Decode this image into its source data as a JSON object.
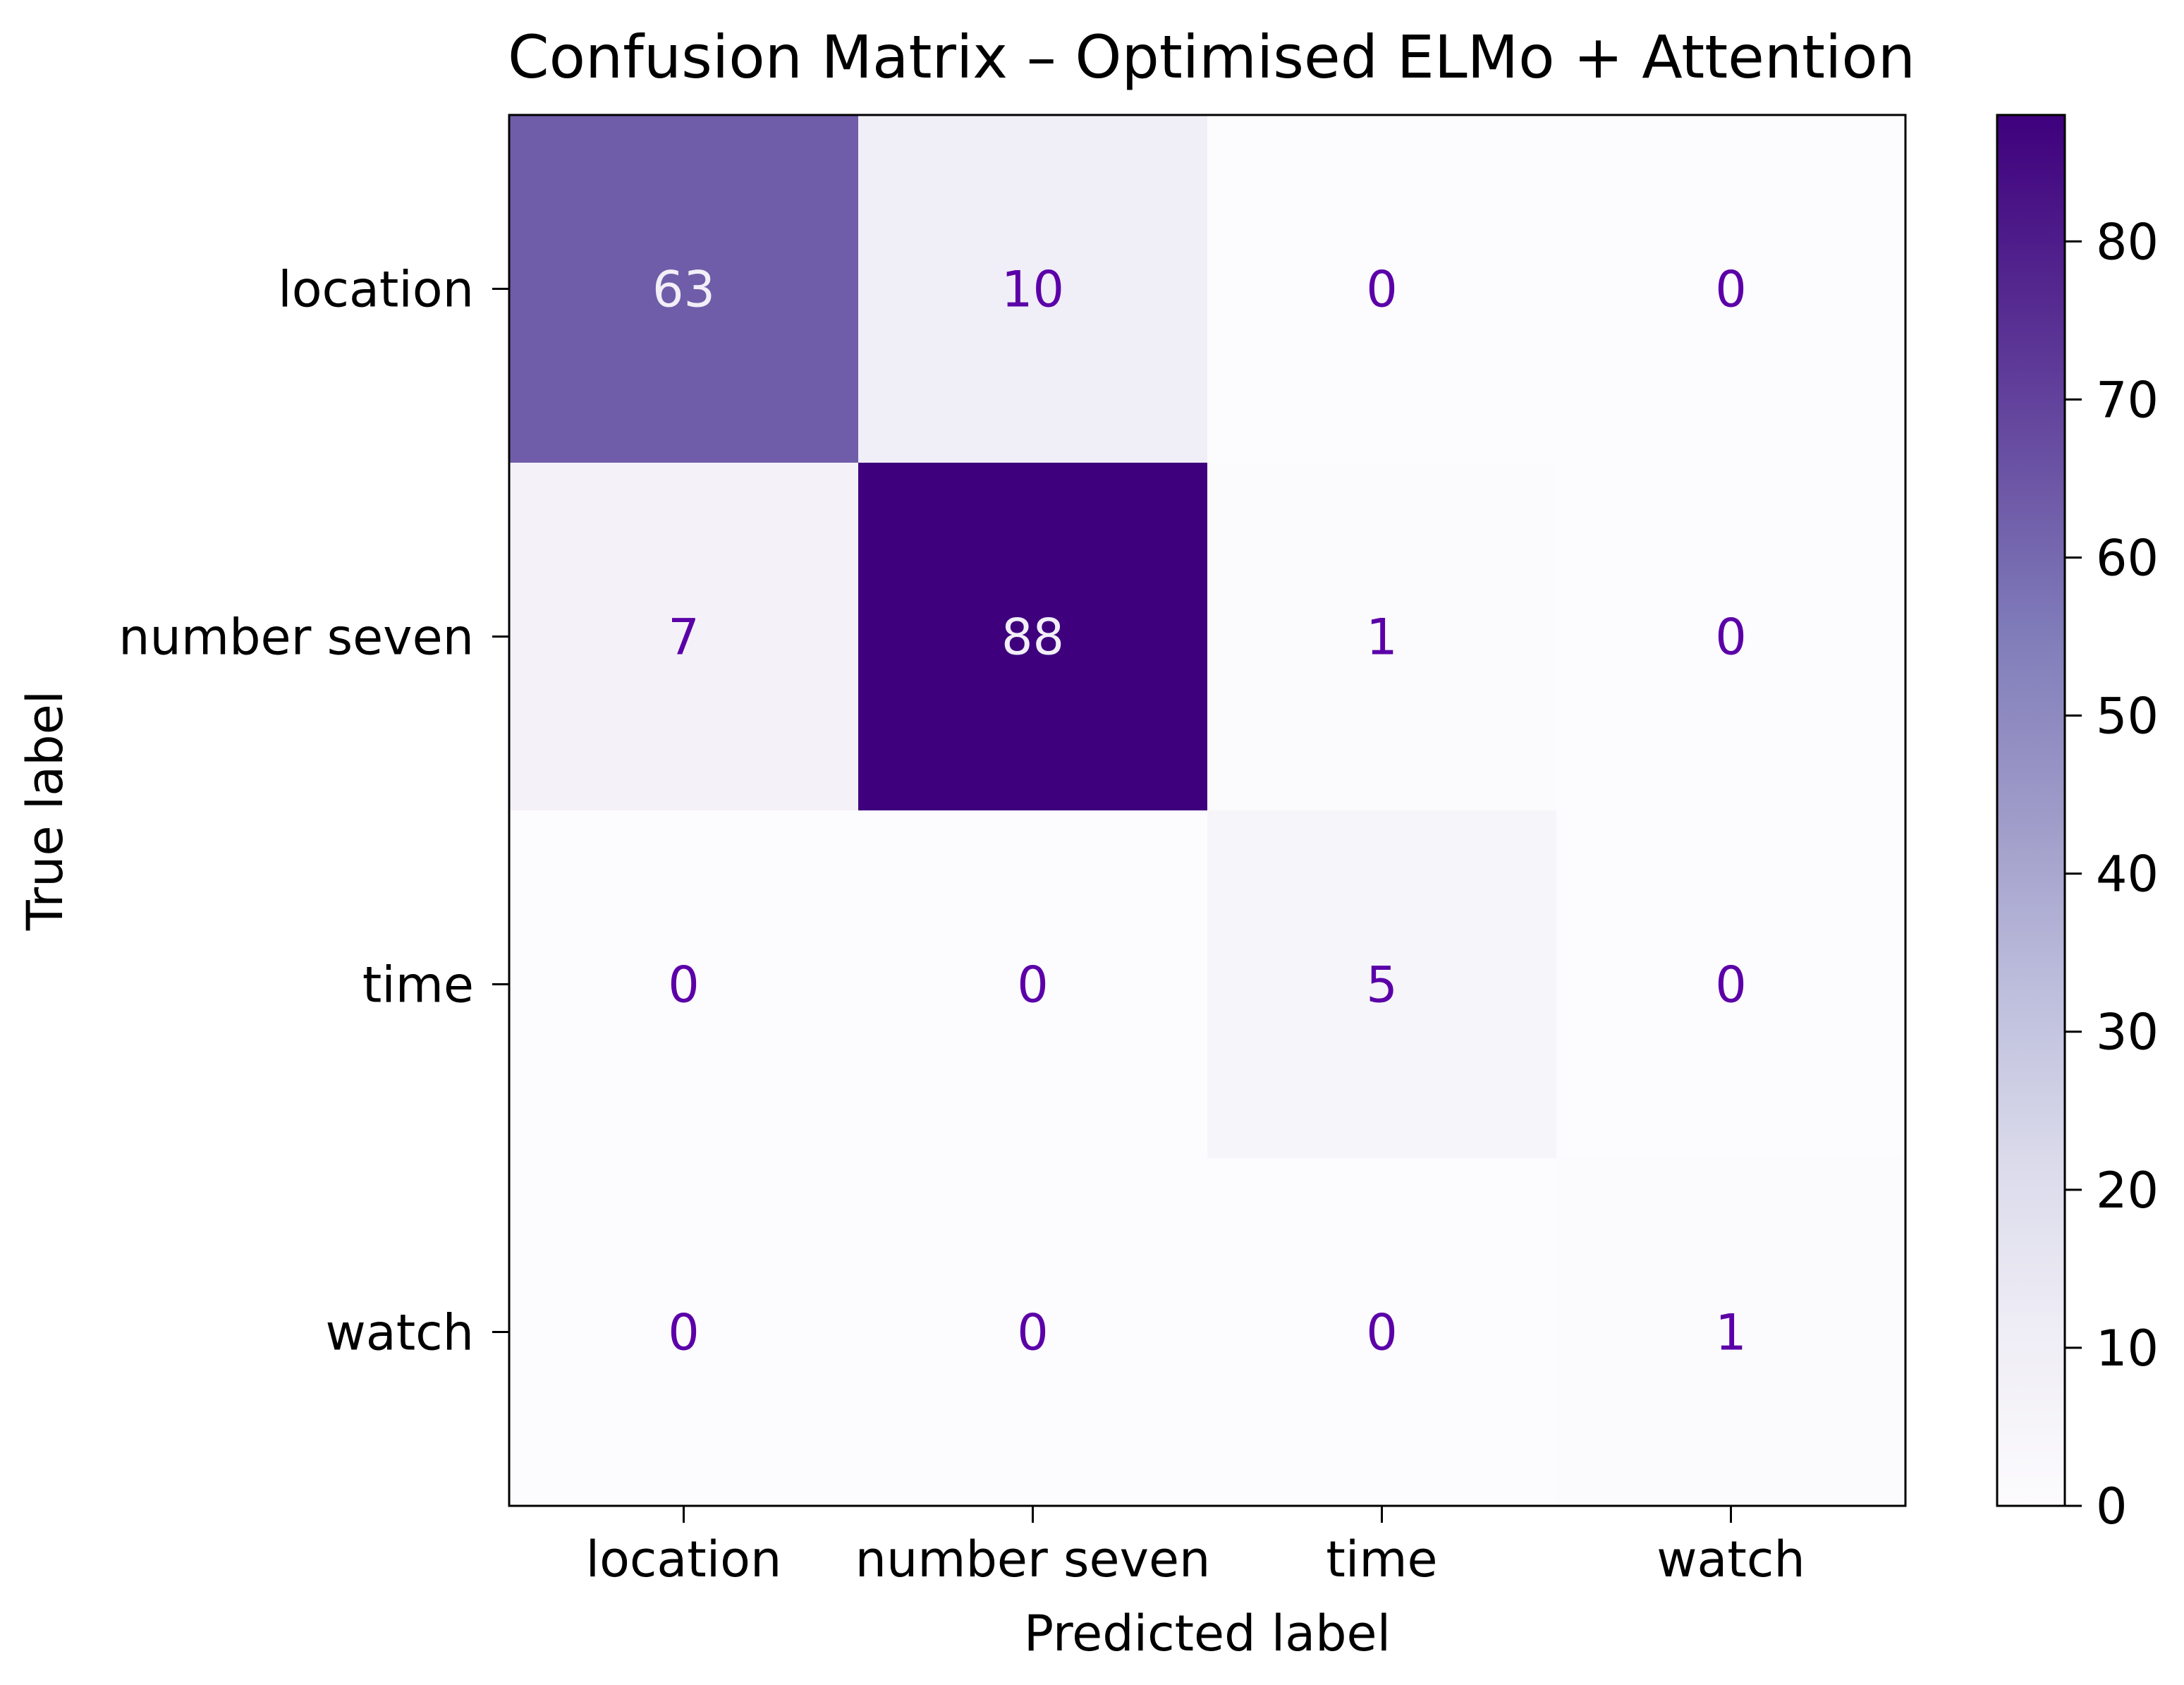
{
  "chart_data": {
    "type": "heatmap",
    "title": "Confusion Matrix – Optimised ELMo + Attention",
    "xlabel": "Predicted label",
    "ylabel": "True label",
    "x_categories": [
      "location",
      "number seven",
      "time",
      "watch"
    ],
    "y_categories": [
      "location",
      "number seven ",
      "time",
      "watch"
    ],
    "matrix": [
      [
        63,
        10,
        0,
        0
      ],
      [
        7,
        88,
        1,
        0
      ],
      [
        0,
        0,
        5,
        0
      ],
      [
        0,
        0,
        0,
        1
      ]
    ],
    "colormap": "Purples",
    "colormap_low": "#fcfbfd",
    "colormap_high": "#3f007d",
    "text_color_light": "#f2eff8",
    "text_color_dark": "#5b00a8",
    "colorbar": {
      "range": [
        0,
        88
      ],
      "ticks": [
        0,
        10,
        20,
        30,
        40,
        50,
        60,
        70,
        80
      ]
    }
  }
}
